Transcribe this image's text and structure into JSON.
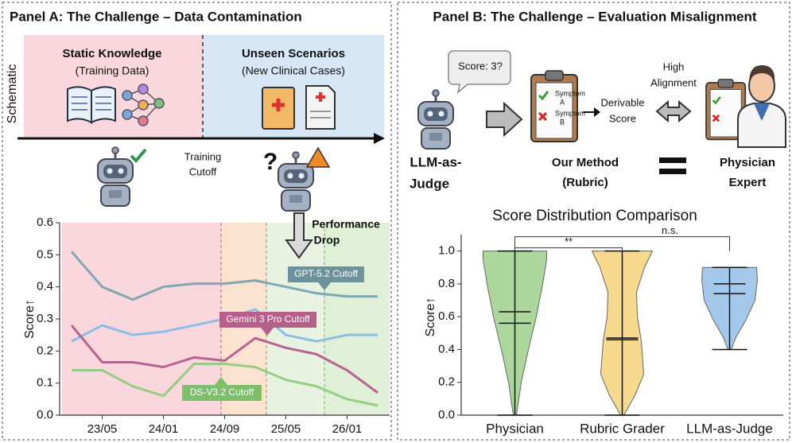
{
  "panel_a": {
    "title": "Panel A: The Challenge – Data Contamination",
    "side_label": "Schematic",
    "static_title": "Static Knowledge",
    "static_subtitle": "(Training Data)",
    "unseen_title": "Unseen Scenarios",
    "unseen_subtitle": "(New Clinical Cases)",
    "cutoff_line1": "Training",
    "cutoff_line2": "Cutoff",
    "drop_line1": "Performance",
    "drop_line2": "Drop"
  },
  "panel_b": {
    "title": "Panel B: The Challenge – Evaluation Misalignment",
    "bubble": "Score: 3?",
    "judge_line1": "LLM-as-",
    "judge_line2": "Judge",
    "method_line1": "Our Method",
    "method_line2": "(Rubric)",
    "derivable_line1": "Derivable",
    "derivable_line2": "Score",
    "alignment_line1": "High",
    "alignment_line2": "Alignment",
    "expert_line1": "Physician",
    "expert_line2": "Expert",
    "symptom_word": "Symptom",
    "symptom_a": "A",
    "symptom_b": "B"
  },
  "chart_data": [
    {
      "type": "line",
      "ylabel": "Score↑",
      "categories": [
        null,
        "23/05",
        null,
        "24/01",
        null,
        "24/09",
        null,
        "25/05",
        null,
        "26/01",
        null
      ],
      "ylim": [
        0,
        0.6
      ],
      "yticks": [
        {
          "value": 0,
          "label": "0.0"
        },
        0.1,
        0.2,
        0.3,
        0.4,
        0.5,
        0.6
      ],
      "series": [
        {
          "color": "#7fa8b2",
          "values": [
            0.51,
            0.4,
            0.36,
            0.4,
            0.41,
            0.41,
            0.42,
            0.4,
            0.38,
            0.37,
            0.37
          ]
        },
        {
          "color": "#8dbde2",
          "values": [
            0.23,
            0.28,
            0.25,
            0.26,
            0.28,
            0.3,
            0.33,
            0.25,
            0.23,
            0.25,
            0.25
          ]
        },
        {
          "color": "#b8638f",
          "values": [
            0.28,
            0.165,
            0.165,
            0.15,
            0.18,
            0.17,
            0.24,
            0.21,
            0.19,
            0.14,
            0.07
          ]
        },
        {
          "color": "#96cc84",
          "values": [
            0.14,
            0.14,
            0.09,
            0.06,
            0.16,
            0.16,
            0.15,
            0.11,
            0.09,
            0.05,
            0.03
          ]
        }
      ],
      "annotations": [
        "GPT-5.2 Cutoff",
        "Gemini 3 Pro Cutoff",
        "DS-V3.2 Cutoff"
      ]
    },
    {
      "type": "violin",
      "title": "Score Distribution Comparison",
      "ylabel": "Score↑",
      "categories": [
        "Physician",
        "Rubric Grader",
        "LLM-as-Judge"
      ],
      "ylim": [
        0,
        1.1
      ],
      "yticks": [
        {
          "value": 0,
          "label": "0.0"
        },
        0.2,
        0.4,
        0.6,
        0.8,
        {
          "value": 1,
          "label": "1.0"
        }
      ],
      "violins": [
        {
          "color": "#acd79c",
          "min": 0,
          "max": 1.0,
          "mean": 0.63,
          "median": 0.56
        },
        {
          "color": "#f7d98e",
          "min": 0,
          "max": 1.0,
          "mean": 0.47,
          "median": 0.46
        },
        {
          "color": "#a3c8ea",
          "min": 0.4,
          "max": 0.9,
          "mean": 0.8,
          "median": 0.74
        }
      ],
      "significance": [
        "**",
        "n.s."
      ]
    }
  ]
}
